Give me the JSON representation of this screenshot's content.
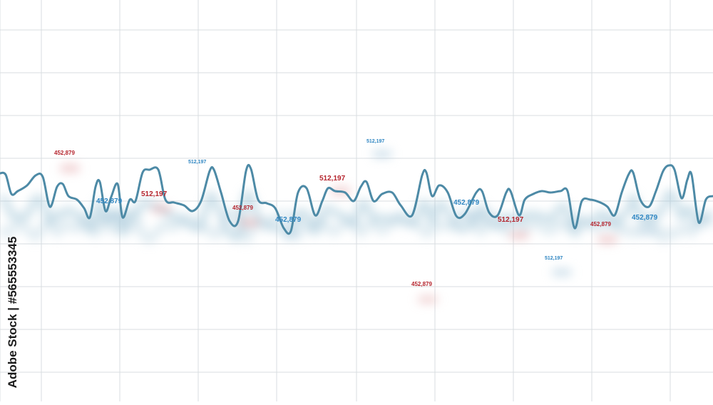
{
  "watermark": {
    "text": "Adobe Stock | #565553345"
  },
  "colors": {
    "line": "#4d8aa6",
    "blue_label": "#2f86c2",
    "red_label": "#b5242d",
    "grid": "#d9dde1"
  },
  "chart_data": {
    "type": "line",
    "title": "",
    "xlabel": "",
    "ylabel": "",
    "grid": true,
    "legend": "none",
    "annotations": [
      {
        "text": "452,879",
        "color": "red"
      },
      {
        "text": "512,197",
        "color": "blue"
      },
      {
        "text": "512,197",
        "color": "blue"
      },
      {
        "text": "452,879",
        "color": "blue"
      },
      {
        "text": "512,197",
        "color": "red"
      },
      {
        "text": "452,879",
        "color": "red"
      },
      {
        "text": "452,879",
        "color": "blue"
      },
      {
        "text": "512,197",
        "color": "red"
      },
      {
        "text": "452,879",
        "color": "blue"
      },
      {
        "text": "512,197",
        "color": "red"
      },
      {
        "text": "452,879",
        "color": "red"
      },
      {
        "text": "512,197",
        "color": "blue"
      },
      {
        "text": "452,879",
        "color": "red"
      },
      {
        "text": "452,879",
        "color": "blue"
      }
    ]
  }
}
